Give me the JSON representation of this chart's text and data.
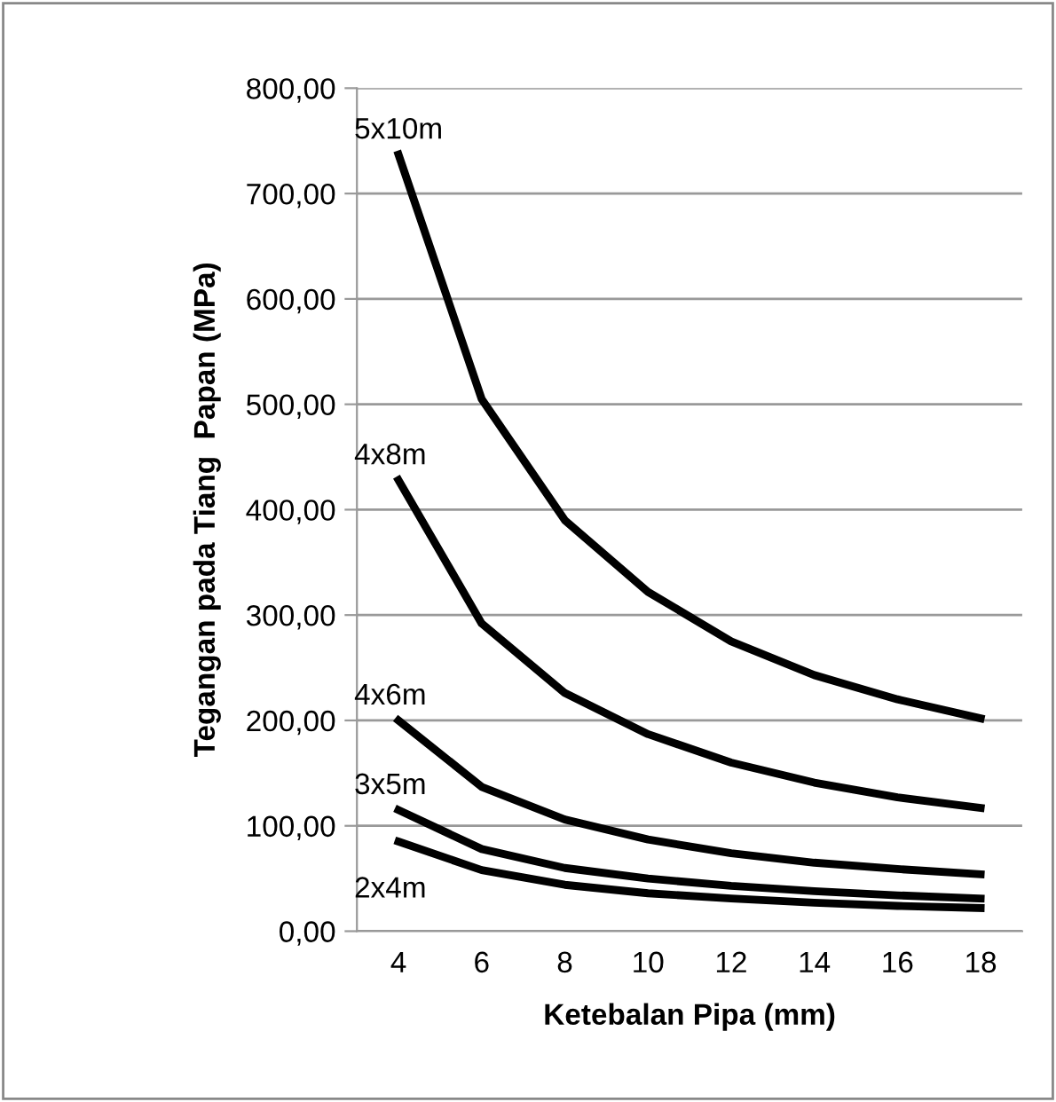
{
  "chart_data": {
    "type": "line",
    "xlabel": "Ketebalan Pipa (mm)",
    "ylabel": "Tegangan pada Tiang  Papan (MPa)",
    "categories": [
      "4",
      "6",
      "8",
      "10",
      "12",
      "14",
      "16",
      "18"
    ],
    "series": [
      {
        "color": "#000000",
        "values": [
          737,
          505,
          390,
          322,
          275,
          243,
          220,
          202
        ]
      },
      {
        "color": "#000000",
        "values": [
          428,
          292,
          226,
          187,
          160,
          141,
          127,
          117
        ]
      },
      {
        "color": "#000000",
        "values": [
          200,
          137,
          106,
          87,
          74,
          65,
          59,
          54
        ]
      },
      {
        "color": "#000000",
        "values": [
          115,
          78,
          60,
          50,
          43,
          38,
          34,
          31
        ]
      },
      {
        "color": "#000000",
        "values": [
          85,
          58,
          44,
          36,
          31,
          27,
          24,
          22
        ]
      }
    ],
    "annotations": [
      {
        "text": "5x10m",
        "x": "4",
        "y": 737
      },
      {
        "text": "4x8m",
        "x": "4",
        "y": 428
      },
      {
        "text": "4x6m",
        "x": "4",
        "y": 200
      },
      {
        "text": "3x5m",
        "x": "4",
        "y": 115
      },
      {
        "text": "2x4m",
        "x": "4",
        "y": 85
      }
    ],
    "ylim": [
      0,
      800
    ],
    "yticks": [
      {
        "value": 0,
        "label": "0,00"
      },
      {
        "value": 100,
        "label": "100,00"
      },
      {
        "value": 200,
        "label": "200,00"
      },
      {
        "value": 300,
        "label": "300,00"
      },
      {
        "value": 400,
        "label": "400,00"
      },
      {
        "value": 500,
        "label": "500,00"
      },
      {
        "value": 600,
        "label": "600,00"
      },
      {
        "value": 700,
        "label": "700,00"
      },
      {
        "value": 800,
        "label": "800,00"
      }
    ],
    "grid": "y",
    "legend": false,
    "marker": "none",
    "line_style": "solid"
  }
}
